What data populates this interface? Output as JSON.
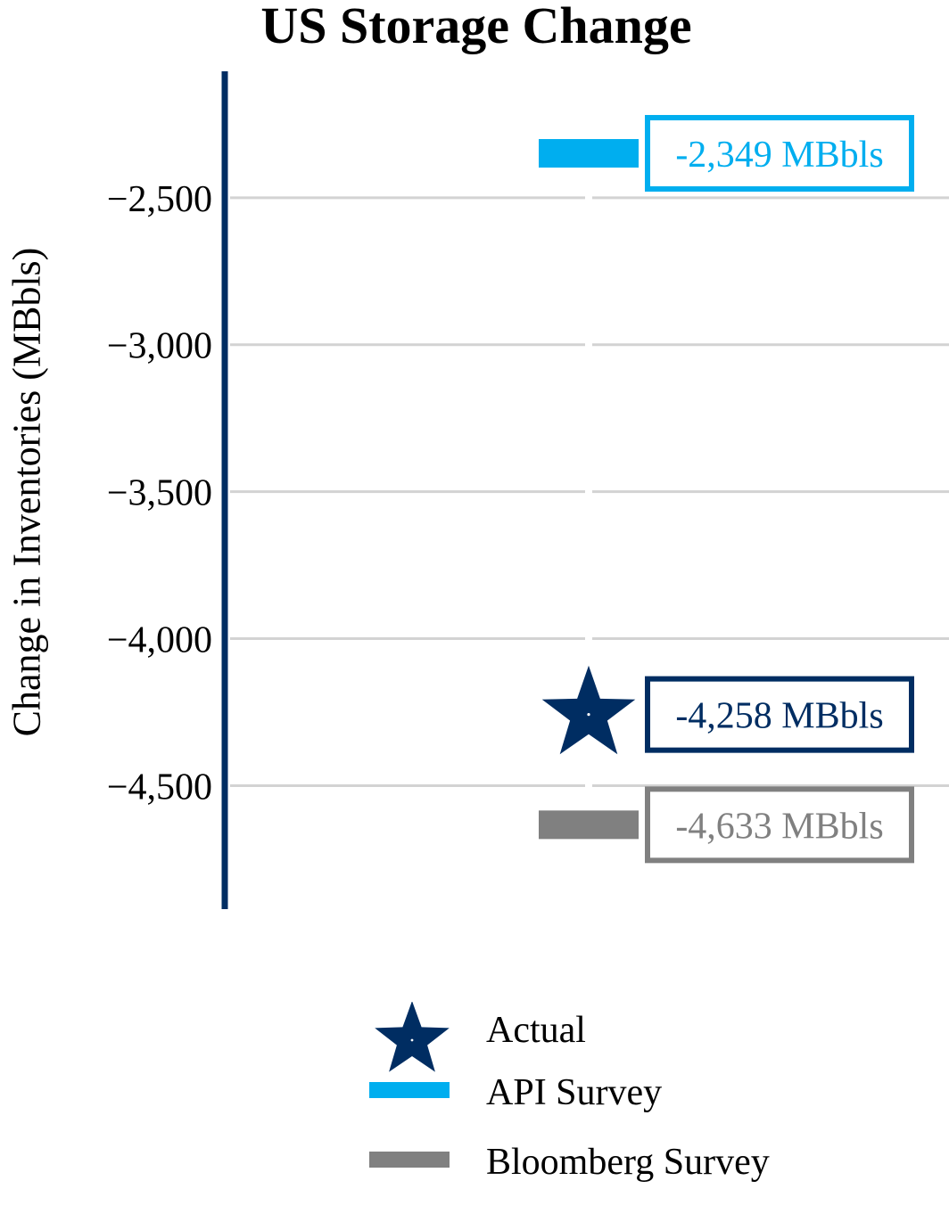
{
  "chart_data": {
    "type": "scatter",
    "title": "US Storage Change",
    "ylabel": "Change in Inventories (MBbls)",
    "ylim": [
      -4920,
      -2070
    ],
    "y_ticks": [
      -2500,
      -3000,
      -3500,
      -4000,
      -4500
    ],
    "y_tick_labels": [
      "−2,500",
      "−3,000",
      "−3,500",
      "−4,000",
      "−4,500"
    ],
    "grid": true,
    "legend_position": "bottom",
    "series": [
      {
        "name": "Actual",
        "marker": "star",
        "value": -4258,
        "annotation": "-4,258 MBbls",
        "color": "#002D62"
      },
      {
        "name": "API Survey",
        "marker": "dash",
        "value": -2349,
        "annotation": "-2,349 MBbls",
        "color": "#00AEEF"
      },
      {
        "name": "Bloomberg Survey",
        "marker": "dash",
        "value": -4633,
        "annotation": "-4,633 MBbls",
        "color": "#808080"
      }
    ]
  }
}
